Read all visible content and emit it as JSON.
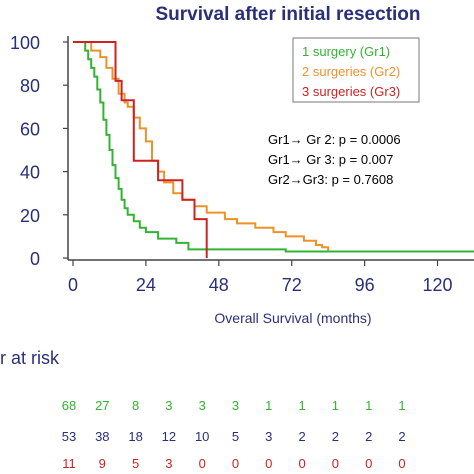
{
  "chart_data": {
    "type": "line",
    "subtype": "kaplan-meier step",
    "title": "Survival after initial resection",
    "xlabel": "Overall Survival (months)",
    "ylabel": "",
    "xlim": [
      0,
      132
    ],
    "ylim": [
      0,
      100
    ],
    "x_ticks": [
      "0",
      "24",
      "48",
      "72",
      "96",
      "120"
    ],
    "y_ticks": [
      "100",
      "80",
      "60",
      "40",
      "20",
      "0"
    ],
    "grid": false,
    "legend_position": "top-right",
    "series": [
      {
        "name": "1 surgery (Gr1)",
        "color": "#33b333",
        "points": [
          [
            0,
            100
          ],
          [
            3,
            100
          ],
          [
            4,
            96
          ],
          [
            5,
            92
          ],
          [
            6,
            88
          ],
          [
            7,
            84
          ],
          [
            8,
            78
          ],
          [
            9,
            72
          ],
          [
            10,
            64
          ],
          [
            11,
            57
          ],
          [
            12,
            50
          ],
          [
            13,
            43
          ],
          [
            14,
            37
          ],
          [
            15,
            32
          ],
          [
            16,
            27
          ],
          [
            17,
            23
          ],
          [
            18,
            20
          ],
          [
            20,
            17
          ],
          [
            22,
            14
          ],
          [
            24,
            12
          ],
          [
            28,
            9
          ],
          [
            34,
            7
          ],
          [
            38,
            4
          ],
          [
            70,
            4
          ],
          [
            70,
            3
          ],
          [
            132,
            3
          ]
        ]
      },
      {
        "name": "2 surgeries (Gr2)",
        "color": "#f0902a",
        "points": [
          [
            0,
            100
          ],
          [
            5,
            100
          ],
          [
            6,
            96
          ],
          [
            9,
            93
          ],
          [
            11,
            88
          ],
          [
            13,
            83
          ],
          [
            15,
            76
          ],
          [
            17,
            72
          ],
          [
            18,
            70
          ],
          [
            20,
            65
          ],
          [
            22,
            60
          ],
          [
            24,
            54
          ],
          [
            26,
            45
          ],
          [
            28,
            40
          ],
          [
            30,
            35
          ],
          [
            33,
            30
          ],
          [
            36,
            27
          ],
          [
            40,
            24
          ],
          [
            44,
            21
          ],
          [
            50,
            18
          ],
          [
            54,
            16
          ],
          [
            60,
            14
          ],
          [
            66,
            12
          ],
          [
            70,
            10
          ],
          [
            76,
            8
          ],
          [
            80,
            6
          ],
          [
            82,
            5
          ],
          [
            84,
            5
          ],
          [
            84,
            3
          ],
          [
            132,
            3
          ]
        ]
      },
      {
        "name": "3 surgeries (Gr3)",
        "color": "#cc2222",
        "points": [
          [
            0,
            100
          ],
          [
            14,
            100
          ],
          [
            14,
            82
          ],
          [
            16,
            82
          ],
          [
            16,
            73
          ],
          [
            20,
            73
          ],
          [
            20,
            45
          ],
          [
            28,
            45
          ],
          [
            28,
            36
          ],
          [
            36,
            36
          ],
          [
            36,
            27
          ],
          [
            40,
            27
          ],
          [
            40,
            18
          ],
          [
            44,
            18
          ],
          [
            44,
            0
          ]
        ]
      }
    ],
    "annotations": [
      {
        "gr": "Gr1",
        "arrow": "→",
        "rest": " Gr 2: p = 0.0006"
      },
      {
        "gr": "Gr1",
        "arrow": "→",
        "rest": " Gr 3: p = 0.007"
      },
      {
        "gr": "Gr2",
        "arrow": "→",
        "rest": "Gr3: p = 0.7608"
      }
    ]
  },
  "risk_table": {
    "title": "r at risk",
    "rows": [
      {
        "color": "#33b333",
        "values": [
          "68",
          "27",
          "8",
          "3",
          "3",
          "3",
          "1",
          "1",
          "1",
          "1",
          "1"
        ]
      },
      {
        "color": "#2a2f7a",
        "values": [
          "53",
          "38",
          "18",
          "12",
          "10",
          "5",
          "3",
          "2",
          "2",
          "2",
          "2"
        ]
      },
      {
        "color": "#cc2222",
        "values": [
          "11",
          "9",
          "5",
          "3",
          "0",
          "0",
          "0",
          "0",
          "0",
          "0",
          "0"
        ]
      }
    ]
  },
  "colors": {
    "title": "#2a2f7a",
    "axis_text": "#2a2f7a",
    "axis_line": "#444444"
  }
}
